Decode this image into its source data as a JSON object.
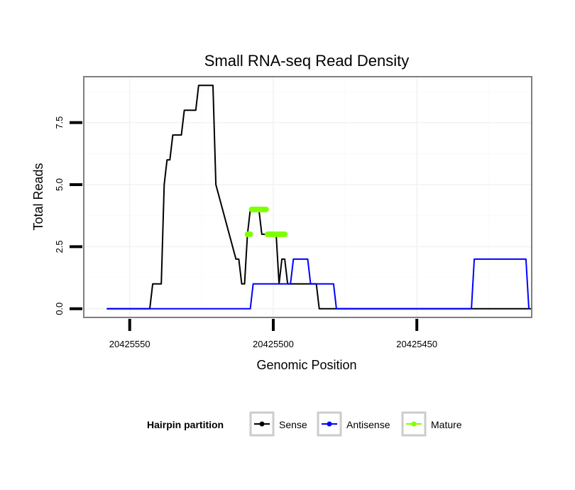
{
  "chart_data": {
    "type": "line",
    "title": "Small RNA-seq Read Density",
    "xlabel": "Genomic Position",
    "ylabel": "Total Reads",
    "xlim": [
      20425566,
      20425410
    ],
    "ylim": [
      -0.35,
      9.35
    ],
    "x_reversed": true,
    "grid": true,
    "xticks": [
      20425550,
      20425500,
      20425450
    ],
    "xtick_labels": [
      "20425550",
      "20425500",
      "20425450"
    ],
    "yticks": [
      0,
      2.5,
      5,
      7.5
    ],
    "ytick_labels": [
      "0.0",
      "2.5",
      "5.0",
      "7.5"
    ],
    "legend": {
      "title": "Hairpin partition",
      "position": "bottom",
      "entries": [
        "Sense",
        "Antisense",
        "Mature"
      ]
    },
    "series": [
      {
        "name": "Sense",
        "color": "#000000",
        "x": [
          20425558,
          20425543,
          20425542,
          20425539,
          20425538,
          20425537,
          20425536,
          20425535,
          20425532,
          20425531,
          20425527,
          20425526,
          20425521,
          20425520,
          20425513,
          20425512,
          20425511,
          20425510,
          20425509,
          20425508,
          20425507,
          20425506,
          20425505,
          20425504,
          20425503,
          20425500,
          20425499,
          20425498,
          20425497,
          20425496,
          20425495,
          20425494,
          20425488,
          20425487,
          20425486,
          20425485,
          20425484,
          20425483,
          20425482,
          20425481,
          20425477,
          20425476,
          20425475,
          20425474,
          20425473,
          20425472,
          20425471,
          20425470,
          20425469,
          20425468,
          20425467,
          20425466,
          20425465,
          20425464,
          20425463,
          20425462,
          20425461,
          20425460,
          20425459,
          20425458,
          20425457,
          20425456,
          20425455,
          20425454,
          20425453,
          20425452,
          20425451,
          20425450,
          20425449,
          20425448,
          20425447,
          20425446,
          20425445,
          20425444,
          20425443,
          20425442,
          20425441,
          20425440,
          20425439,
          20425438,
          20425437,
          20425436,
          20425435,
          20425434,
          20425433,
          20425432,
          20425431,
          20425430,
          20425429,
          20425428,
          20425427,
          20425426,
          20425425,
          20425424,
          20425423,
          20425422,
          20425421,
          20425420,
          20425419,
          20425418,
          20425417,
          20425416,
          20425415,
          20425414,
          20425413,
          20425412,
          20425411,
          20425410
        ],
        "y": [
          0,
          0,
          1,
          1,
          5,
          6,
          6,
          7,
          7,
          8,
          8,
          9,
          9,
          5,
          2,
          2,
          1,
          1,
          3,
          4,
          4,
          4,
          4,
          3,
          3,
          3,
          3,
          1,
          2,
          2,
          1,
          1,
          1,
          1,
          1,
          1,
          0,
          0,
          0,
          0,
          0,
          0,
          0,
          0,
          0,
          0,
          0,
          0,
          0,
          0,
          0,
          0,
          0,
          0,
          0,
          0,
          0,
          0,
          0,
          0,
          0,
          0,
          0,
          0,
          0,
          0,
          0,
          0,
          0,
          0,
          0,
          0,
          0,
          0,
          0,
          0,
          0,
          0,
          0,
          0,
          0,
          0,
          0,
          0,
          0,
          0,
          0,
          0,
          0,
          0,
          0,
          0,
          0,
          0,
          0,
          0,
          0,
          0,
          0,
          0,
          0,
          0,
          0,
          0,
          0,
          0,
          0,
          0
        ]
      },
      {
        "name": "Antisense",
        "color": "#0000ff",
        "x": [
          20425558,
          20425508,
          20425507,
          20425494,
          20425493,
          20425488,
          20425487,
          20425479,
          20425478,
          20425469,
          20425468,
          20425431,
          20425430,
          20425412,
          20425411
        ],
        "y": [
          0,
          0,
          1,
          1,
          2,
          2,
          1,
          1,
          0,
          0,
          0,
          0,
          2,
          2,
          0
        ]
      },
      {
        "name": "Mature",
        "color": "#7fff00",
        "x": [
          20425509,
          20425508,
          20425507.5,
          20425507,
          20425506.5,
          20425506,
          20425505.5,
          20425505,
          20425504.5,
          20425504,
          20425503.5,
          20425503,
          20425502.5,
          20425502,
          20425501.5,
          20425501,
          20425500.5,
          20425500,
          20425499.5,
          20425499,
          20425498.5,
          20425498,
          20425497.5,
          20425497,
          20425496.5,
          20425496
        ],
        "y": [
          3,
          3,
          4,
          4,
          4,
          4,
          4,
          4,
          4,
          4,
          4,
          4,
          4,
          3,
          3,
          3,
          3,
          3,
          3,
          3,
          3,
          3,
          3,
          3,
          3,
          3
        ]
      }
    ]
  }
}
